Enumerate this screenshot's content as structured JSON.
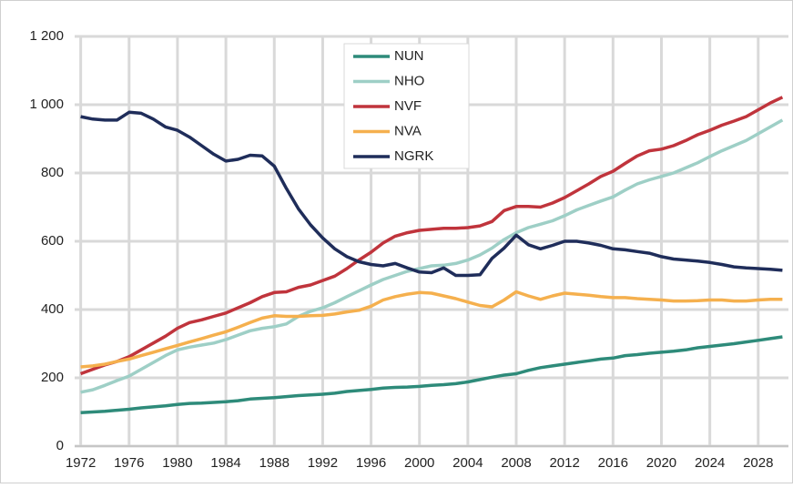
{
  "chart_data": {
    "type": "line",
    "x": [
      1972,
      1973,
      1974,
      1975,
      1976,
      1977,
      1978,
      1979,
      1980,
      1981,
      1982,
      1983,
      1984,
      1985,
      1986,
      1987,
      1988,
      1989,
      1990,
      1991,
      1992,
      1993,
      1994,
      1995,
      1996,
      1997,
      1998,
      1999,
      2000,
      2001,
      2002,
      2003,
      2004,
      2005,
      2006,
      2007,
      2008,
      2009,
      2010,
      2011,
      2012,
      2013,
      2014,
      2015,
      2016,
      2017,
      2018,
      2019,
      2020,
      2021,
      2022,
      2023,
      2024,
      2025,
      2026,
      2027,
      2028,
      2029,
      2030
    ],
    "series": [
      {
        "name": "NUN",
        "color": "#2e8b7a",
        "values": [
          98,
          100,
          102,
          105,
          108,
          112,
          115,
          118,
          122,
          125,
          126,
          128,
          130,
          133,
          138,
          140,
          142,
          145,
          148,
          150,
          152,
          155,
          160,
          163,
          166,
          170,
          172,
          173,
          175,
          178,
          180,
          183,
          188,
          195,
          202,
          208,
          212,
          222,
          230,
          235,
          240,
          245,
          250,
          255,
          258,
          265,
          268,
          272,
          275,
          278,
          282,
          288,
          292,
          296,
          300,
          305,
          310,
          315,
          320
        ]
      },
      {
        "name": "NHO",
        "color": "#9ecfc6",
        "values": [
          158,
          165,
          178,
          192,
          205,
          225,
          245,
          265,
          282,
          290,
          296,
          302,
          312,
          325,
          338,
          345,
          350,
          358,
          380,
          395,
          405,
          420,
          438,
          455,
          472,
          488,
          500,
          512,
          520,
          528,
          530,
          535,
          545,
          560,
          580,
          605,
          625,
          640,
          650,
          660,
          675,
          692,
          705,
          718,
          730,
          750,
          768,
          780,
          790,
          800,
          815,
          830,
          848,
          865,
          880,
          895,
          915,
          935,
          955
        ]
      },
      {
        "name": "NVF",
        "color": "#c0343c",
        "values": [
          212,
          225,
          238,
          248,
          262,
          282,
          302,
          322,
          345,
          362,
          370,
          380,
          390,
          405,
          420,
          438,
          450,
          452,
          465,
          472,
          485,
          498,
          520,
          545,
          568,
          595,
          615,
          625,
          632,
          635,
          638,
          638,
          640,
          645,
          658,
          690,
          702,
          702,
          700,
          712,
          728,
          748,
          768,
          790,
          805,
          828,
          850,
          865,
          870,
          880,
          895,
          912,
          925,
          940,
          952,
          965,
          985,
          1005,
          1022
        ]
      },
      {
        "name": "NVA",
        "color": "#f5b04e",
        "values": [
          232,
          235,
          240,
          248,
          255,
          265,
          275,
          285,
          295,
          305,
          315,
          325,
          335,
          348,
          362,
          375,
          382,
          380,
          380,
          382,
          383,
          387,
          393,
          398,
          410,
          428,
          438,
          445,
          450,
          448,
          440,
          432,
          422,
          412,
          408,
          428,
          452,
          440,
          430,
          440,
          448,
          445,
          442,
          438,
          435,
          435,
          432,
          430,
          428,
          425,
          425,
          426,
          428,
          428,
          425,
          425,
          428,
          430,
          430
        ]
      },
      {
        "name": "NGRK",
        "color": "#1f2d5a",
        "values": [
          965,
          958,
          955,
          955,
          978,
          975,
          958,
          935,
          925,
          905,
          880,
          855,
          835,
          840,
          852,
          850,
          820,
          755,
          695,
          648,
          610,
          578,
          555,
          540,
          532,
          528,
          535,
          522,
          510,
          508,
          522,
          500,
          500,
          502,
          550,
          580,
          618,
          590,
          578,
          588,
          600,
          600,
          595,
          588,
          578,
          575,
          570,
          565,
          555,
          548,
          545,
          542,
          538,
          532,
          525,
          522,
          520,
          518,
          515
        ]
      }
    ],
    "xlim": [
      1971.5,
      2030.5
    ],
    "xticks": [
      1972,
      1976,
      1980,
      1984,
      1988,
      1992,
      1996,
      2000,
      2004,
      2008,
      2012,
      2016,
      2020,
      2024,
      2028
    ],
    "ylim": [
      0,
      1200
    ],
    "yticks": [
      0,
      200,
      400,
      600,
      800,
      {
        "value": 1000,
        "label": "1 000"
      },
      {
        "value": 1200,
        "label": "1 200"
      }
    ],
    "grid": true,
    "legend": "upper center"
  }
}
